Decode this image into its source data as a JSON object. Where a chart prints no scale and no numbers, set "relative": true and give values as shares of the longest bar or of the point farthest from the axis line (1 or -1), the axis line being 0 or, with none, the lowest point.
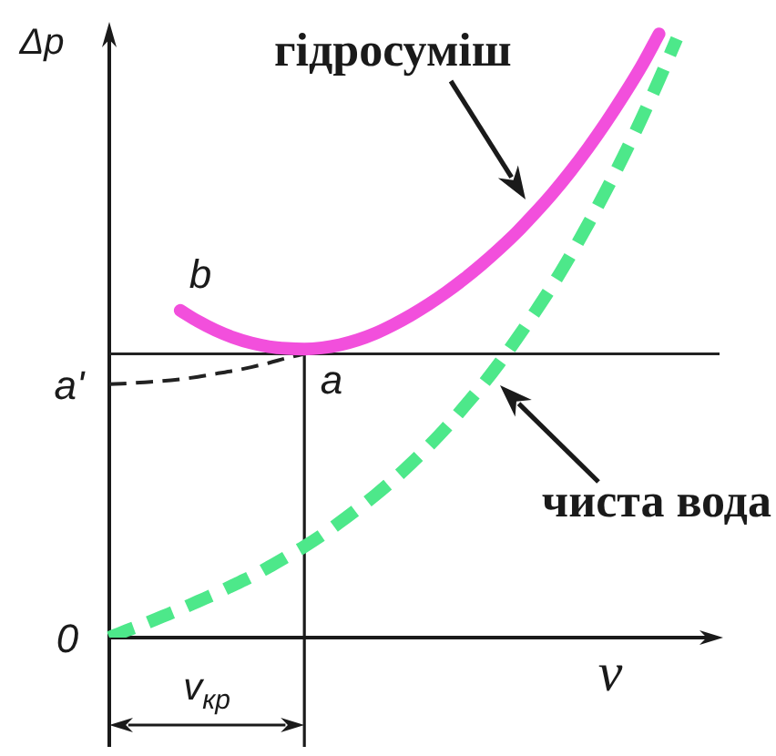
{
  "chart_data": {
    "type": "line",
    "relative": true,
    "ylabel": "Δp",
    "xlabel": "v",
    "marker": "none",
    "categories": [
      null,
      null,
      null,
      null,
      null,
      null,
      null,
      null,
      null,
      null,
      null,
      null,
      null,
      null,
      null,
      null,
      null,
      null,
      null,
      null,
      null,
      null,
      null,
      null,
      null,
      null,
      null,
      null,
      null,
      null,
      null,
      null,
      null,
      null,
      null
    ],
    "series": [
      {
        "name": "гідросуміш",
        "color": "#f24fdc",
        "line_style": "solid",
        "values": [
          null,
          null,
          null,
          null,
          0.542,
          0.524,
          0.509,
          0.497,
          0.488,
          0.482,
          0.479,
          0.478,
          0.48,
          0.485,
          0.493,
          0.504,
          0.518,
          0.534,
          0.552,
          0.572,
          0.594,
          0.618,
          0.644,
          0.672,
          0.703,
          0.736,
          0.772,
          0.811,
          0.853,
          0.898,
          0.946,
          1,
          null,
          null,
          null
        ]
      },
      {
        "name": "чиста вода",
        "color": "#4de88a",
        "line_style": "dashed",
        "values": [
          0,
          0.012,
          0.023,
          0.035,
          0.047,
          0.06,
          0.073,
          0.087,
          0.101,
          0.117,
          0.134,
          0.151,
          0.17,
          0.191,
          0.213,
          0.236,
          0.261,
          0.288,
          0.317,
          0.348,
          0.382,
          0.417,
          0.455,
          0.496,
          0.539,
          0.584,
          0.633,
          0.685,
          0.74,
          0.798,
          0.859,
          0.924,
          0.992,
          null,
          null
        ]
      },
      {
        "color": "#222222",
        "line_style": "dashed",
        "values": [
          0.42,
          0.421,
          0.423,
          0.425,
          0.428,
          0.432,
          0.437,
          0.442,
          0.448,
          0.455,
          0.463,
          0.47,
          null,
          null,
          null,
          null,
          null,
          null,
          null,
          null,
          null,
          null,
          null,
          null,
          null,
          null,
          null,
          null,
          null,
          null,
          null,
          null,
          null,
          null,
          null
        ]
      }
    ],
    "ref_lines": [
      {
        "axis": "y",
        "value": 0.47,
        "color": "#222222"
      }
    ],
    "annotations": [
      "b",
      "a",
      "a'",
      "0",
      "v$_{кр}$"
    ]
  }
}
